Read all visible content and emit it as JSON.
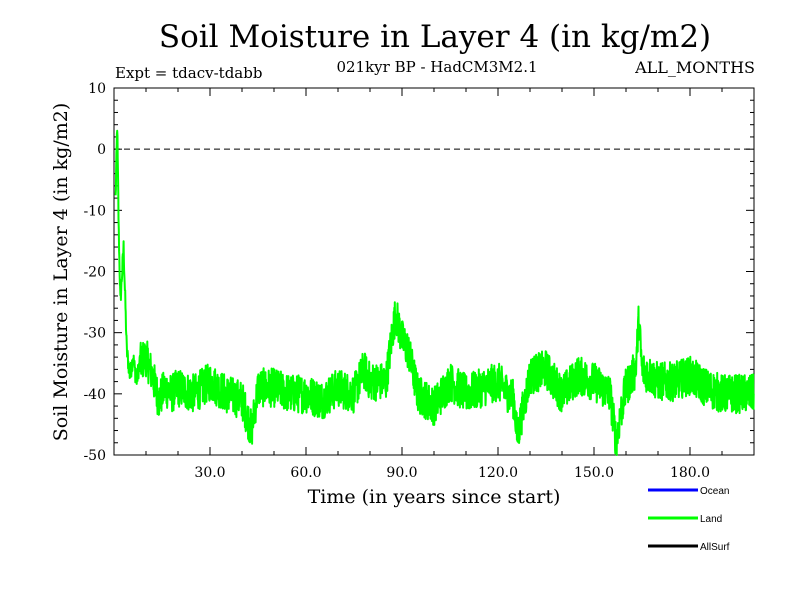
{
  "chart_data": {
    "type": "line",
    "title": "Soil Moisture in Layer 4 (in kg/m2)",
    "subtitle_left": "Expt = tdacv-tdabb",
    "subtitle_center": "021kyr BP - HadCM3M2.1",
    "subtitle_right": "ALL_MONTHS",
    "xlabel": "Time (in years since start)",
    "ylabel": "Soil Moisture in Layer 4 (in kg/m2)",
    "xlim": [
      0,
      200
    ],
    "ylim": [
      -50,
      10
    ],
    "xticks": [
      30,
      60,
      90,
      120,
      150,
      180
    ],
    "xtick_labels": [
      "30.0",
      "60.0",
      "90.0",
      "120.0",
      "150.0",
      "180.0"
    ],
    "yticks": [
      10,
      0,
      -10,
      -20,
      -30,
      -40,
      -50
    ],
    "ytick_labels": [
      "10",
      "0",
      "-10",
      "-20",
      "-30",
      "-40",
      "-50"
    ],
    "reference_line": 0,
    "legend": [
      {
        "name": "Ocean",
        "color": "#0000ff"
      },
      {
        "name": "Land",
        "color": "#00ff00"
      },
      {
        "name": "AllSurf",
        "color": "#000000"
      }
    ],
    "series": [
      {
        "name": "Land",
        "color": "#00ff00",
        "x": [
          0.5,
          1,
          1.5,
          2,
          3,
          4,
          5,
          6,
          7,
          8,
          10,
          12,
          14,
          16,
          18,
          20,
          25,
          30,
          35,
          40,
          43,
          45,
          50,
          55,
          60,
          65,
          70,
          75,
          78,
          80,
          85,
          87,
          88,
          90,
          92,
          95,
          100,
          105,
          110,
          115,
          120,
          125,
          126,
          130,
          135,
          140,
          145,
          150,
          155,
          157,
          158,
          160,
          163,
          164,
          165,
          170,
          175,
          180,
          185,
          190,
          195,
          200
        ],
        "values": [
          -8,
          4,
          -14,
          -25,
          -16,
          -33,
          -37,
          -34,
          -38,
          -35,
          -34,
          -37,
          -41,
          -39,
          -40,
          -39,
          -40,
          -38,
          -40,
          -41,
          -46,
          -39,
          -39,
          -40,
          -40,
          -41,
          -39,
          -40,
          -36,
          -38,
          -38,
          -30,
          -27,
          -31,
          -33,
          -40,
          -42,
          -38,
          -40,
          -39,
          -38,
          -41,
          -47,
          -37,
          -36,
          -40,
          -37,
          -38,
          -40,
          -48,
          -44,
          -39,
          -36,
          -28,
          -36,
          -38,
          -38,
          -37,
          -39,
          -40,
          -40,
          -40
        ]
      }
    ]
  }
}
